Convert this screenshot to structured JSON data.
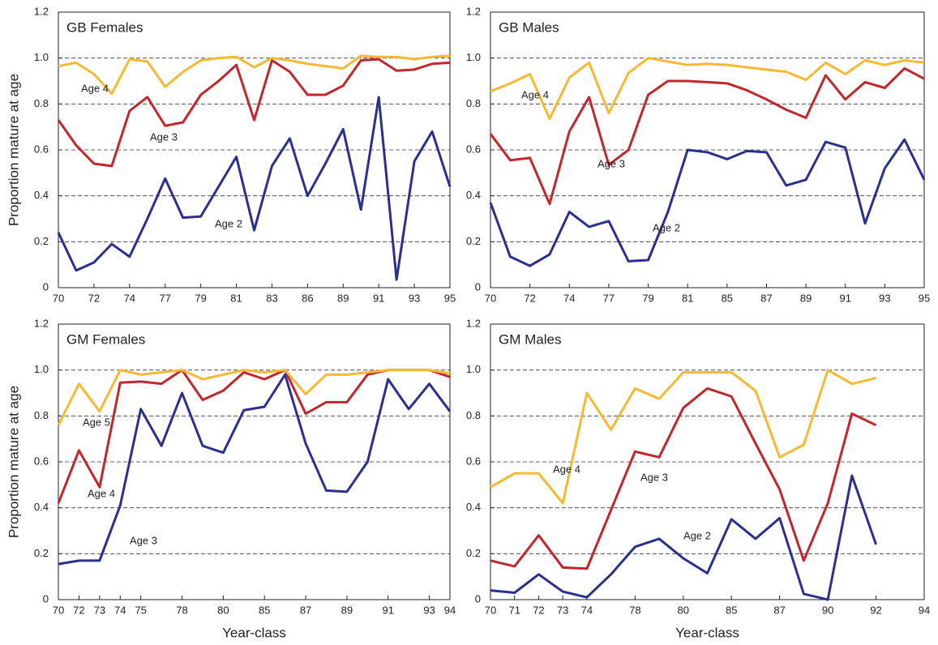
{
  "chart_data": [
    {
      "type": "line",
      "title": "GB Females",
      "y_label": "Proportion mature at age",
      "categories": [
        "70",
        null,
        "72",
        null,
        "74",
        null,
        "77",
        null,
        "79",
        null,
        "81",
        null,
        "83",
        null,
        "86",
        null,
        "89",
        null,
        "91",
        null,
        "93",
        null,
        "95"
      ],
      "series": [
        {
          "name": "Age 2",
          "color": "#2b2f8f",
          "values": [
            0.24,
            0.075,
            0.11,
            0.19,
            0.135,
            0.3,
            0.475,
            0.305,
            0.31,
            0.44,
            0.57,
            0.25,
            0.53,
            0.65,
            0.4,
            0.54,
            0.69,
            0.34,
            0.83,
            0.035,
            0.55,
            0.68,
            0.44
          ]
        },
        {
          "name": "Age 3",
          "color": "#c1272d",
          "values": [
            0.73,
            0.62,
            0.54,
            0.53,
            0.77,
            0.83,
            0.705,
            0.72,
            0.84,
            0.9,
            0.97,
            0.73,
            0.99,
            0.94,
            0.84,
            0.84,
            0.88,
            0.99,
            0.995,
            0.945,
            0.95,
            0.975,
            0.98
          ]
        },
        {
          "name": "Age 4",
          "color": "#f5b933",
          "values": [
            0.965,
            0.98,
            0.93,
            0.845,
            0.995,
            0.985,
            0.875,
            0.94,
            0.99,
            1.0,
            1.005,
            0.96,
            1.0,
            0.99,
            0.975,
            0.965,
            0.955,
            1.01,
            1.005,
            1.005,
            0.995,
            1.005,
            1.01
          ]
        }
      ],
      "ylim": [
        0,
        1.2
      ],
      "yticks": [
        0,
        0.2,
        0.4,
        0.6,
        0.8,
        {
          "value": 1,
          "label": "1.0"
        },
        1.2
      ],
      "grid": true
    },
    {
      "type": "line",
      "title": "GB Males",
      "categories": [
        "70",
        null,
        "72",
        null,
        "74",
        null,
        "77",
        null,
        "79",
        null,
        "81",
        null,
        "85",
        null,
        "87",
        null,
        "89",
        null,
        "91",
        null,
        "93",
        null,
        "95"
      ],
      "series": [
        {
          "name": "Age 2",
          "color": "#2b2f8f",
          "values": [
            0.37,
            0.135,
            0.095,
            0.145,
            0.33,
            0.265,
            0.29,
            0.115,
            0.12,
            0.33,
            0.6,
            0.59,
            0.56,
            0.595,
            0.59,
            0.445,
            0.47,
            0.635,
            0.61,
            0.28,
            0.52,
            0.645,
            0.47
          ]
        },
        {
          "name": "Age 3",
          "color": "#c1272d",
          "values": [
            0.67,
            0.555,
            0.565,
            0.365,
            0.68,
            0.83,
            0.535,
            0.6,
            0.84,
            0.9,
            0.9,
            0.895,
            0.89,
            0.86,
            0.82,
            0.775,
            0.74,
            0.925,
            0.82,
            0.895,
            0.87,
            0.955,
            0.91
          ]
        },
        {
          "name": "Age 4",
          "color": "#f5b933",
          "values": [
            0.855,
            0.89,
            0.93,
            0.735,
            0.915,
            0.98,
            0.76,
            0.935,
            1.0,
            0.985,
            0.97,
            0.975,
            0.97,
            0.96,
            0.95,
            0.94,
            0.905,
            0.98,
            0.93,
            0.99,
            0.97,
            0.99,
            0.98
          ]
        }
      ],
      "ylim": [
        0,
        1.2
      ],
      "yticks": [
        0,
        0.2,
        0.4,
        0.6,
        0.8,
        {
          "value": 1,
          "label": "1.0"
        },
        1.2
      ],
      "grid": true
    },
    {
      "type": "line",
      "title": "GM Females",
      "y_label": "Proportion mature at age",
      "x_label": "Year-class",
      "categories": [
        "70",
        "72",
        "73",
        "74",
        "75",
        null,
        "78",
        null,
        "80",
        null,
        "85",
        null,
        "87",
        null,
        "89",
        null,
        "91",
        null,
        "93",
        "94"
      ],
      "series": [
        {
          "name": "Age 3",
          "color": "#2b2f8f",
          "values": [
            0.155,
            0.17,
            0.17,
            0.41,
            0.83,
            0.67,
            0.9,
            0.67,
            0.64,
            0.825,
            0.84,
            0.98,
            0.68,
            0.475,
            0.47,
            0.6,
            0.96,
            0.83,
            0.94,
            0.82
          ]
        },
        {
          "name": "Age 4",
          "color": "#c1272d",
          "values": [
            0.42,
            0.65,
            0.49,
            0.945,
            0.95,
            0.94,
            1.0,
            0.87,
            0.91,
            0.99,
            0.96,
            1.0,
            0.81,
            0.86,
            0.86,
            0.98,
            1.0,
            1.0,
            1.0,
            0.97
          ]
        },
        {
          "name": "Age 5",
          "color": "#f5b933",
          "values": [
            0.76,
            0.94,
            0.82,
            1.0,
            0.98,
            0.99,
            1.0,
            0.96,
            0.98,
            1.0,
            0.99,
            1.0,
            0.895,
            0.98,
            0.98,
            0.99,
            1.0,
            1.0,
            1.0,
            0.985
          ]
        }
      ],
      "ylim": [
        0,
        1.2
      ],
      "yticks": [
        0,
        0.2,
        0.4,
        0.6,
        0.8,
        {
          "value": 1,
          "label": "1.0"
        },
        1.2
      ],
      "grid": true
    },
    {
      "type": "line",
      "title": "GM Males",
      "x_label": "Year-class",
      "categories": [
        "70",
        "71",
        "72",
        "73",
        "74",
        null,
        "78",
        null,
        "80",
        null,
        "85",
        null,
        "87",
        null,
        "90",
        null,
        "92",
        null,
        "94"
      ],
      "series": [
        {
          "name": "Age 2",
          "color": "#2b2f8f",
          "values": [
            0.04,
            0.03,
            0.11,
            0.035,
            0.01,
            0.11,
            0.23,
            0.265,
            0.18,
            0.115,
            0.35,
            0.265,
            0.355,
            0.025,
            0.0,
            0.54,
            0.24,
            null,
            null
          ]
        },
        {
          "name": "Age 3",
          "color": "#c1272d",
          "values": [
            0.17,
            0.145,
            0.28,
            0.14,
            0.135,
            0.39,
            0.645,
            0.62,
            0.835,
            0.92,
            0.885,
            0.68,
            0.48,
            0.17,
            0.42,
            0.81,
            0.76,
            null,
            null
          ]
        },
        {
          "name": "Age 4",
          "color": "#f5b933",
          "values": [
            0.49,
            0.55,
            0.55,
            0.42,
            0.9,
            0.74,
            0.92,
            0.875,
            0.99,
            0.99,
            0.99,
            0.91,
            0.62,
            0.675,
            1.0,
            0.94,
            0.965,
            null,
            null
          ]
        }
      ],
      "ylim": [
        0,
        1.2
      ],
      "yticks": [
        0,
        0.2,
        0.4,
        0.6,
        0.8,
        {
          "value": 1,
          "label": "1.0"
        },
        1.2
      ],
      "grid": true
    }
  ]
}
